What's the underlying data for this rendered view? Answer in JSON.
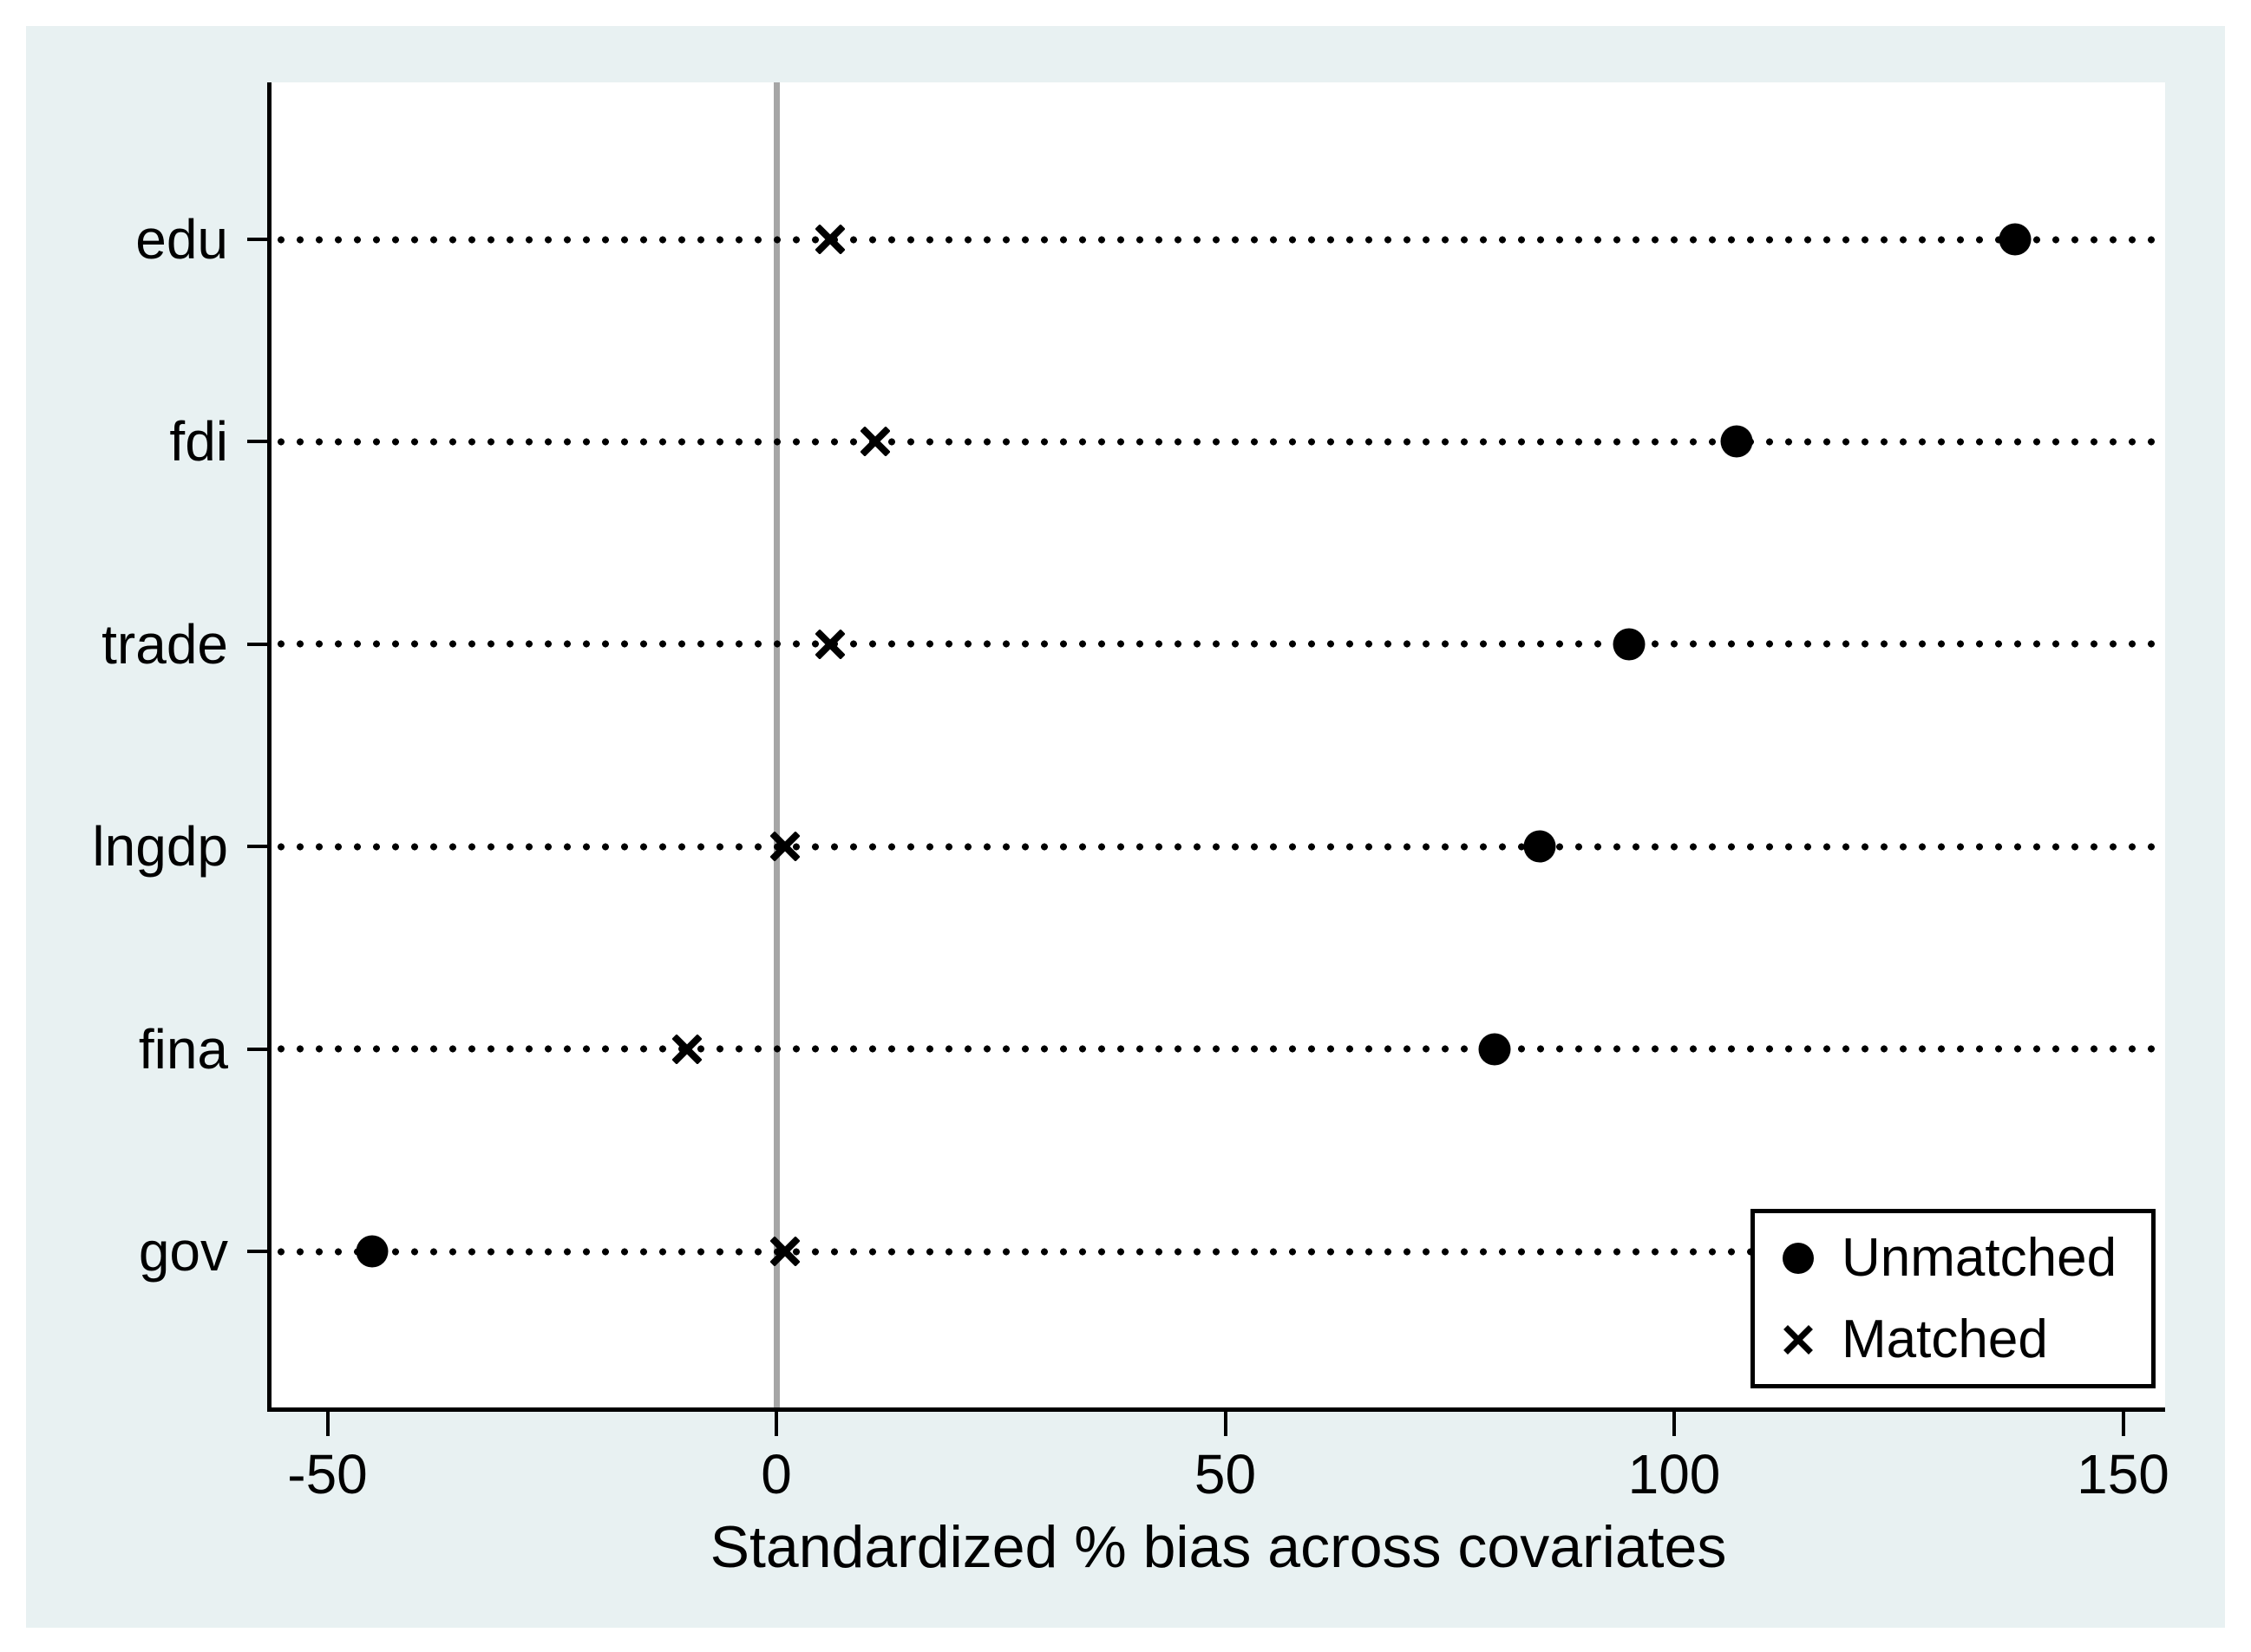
{
  "figure": {
    "canvas_background": "#E8F1F2",
    "plot_background": "#FFFFFF",
    "axis_color": "#000000",
    "marker_color": "#000000",
    "zero_line_color": "#A6A6A6"
  },
  "chart_data": {
    "type": "scatter",
    "subtype": "horizontal-dot-plot",
    "title": "",
    "xlabel": "Standardized % bias across covariates",
    "ylabel": "",
    "categories": [
      "edu",
      "fdi",
      "trade",
      "lngdp",
      "fina",
      "gov"
    ],
    "series": [
      {
        "name": "Unmatched",
        "marker": "circle",
        "values": [
          138,
          107,
          95,
          85,
          80,
          -45
        ]
      },
      {
        "name": "Matched",
        "marker": "x",
        "values": [
          6,
          11,
          6,
          1,
          -10,
          1
        ]
      }
    ],
    "x_ticks": [
      {
        "label": "-50",
        "value": -50
      },
      {
        "label": "0",
        "value": 0
      },
      {
        "label": "50",
        "value": 50
      },
      {
        "label": "100",
        "value": 100
      },
      {
        "label": "150",
        "value": 150
      }
    ],
    "xlim": [
      -56,
      155
    ],
    "zero_reference_line": 0,
    "grid": "dotted-horizontal",
    "legend": {
      "position": "bottom-right",
      "entries": [
        "Unmatched",
        "Matched"
      ]
    }
  }
}
